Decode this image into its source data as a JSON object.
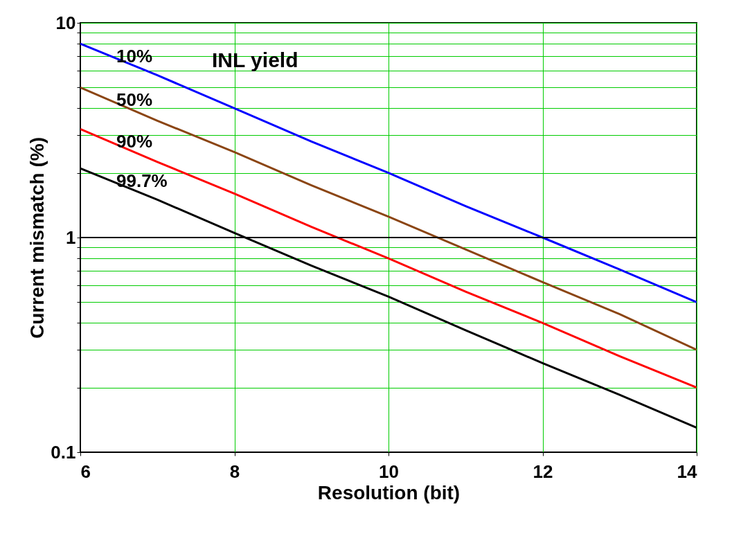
{
  "chart_data": {
    "type": "line",
    "xlabel": "Resolution (bit)",
    "ylabel": "Current mismatch (%)",
    "legend_title": "INL yield",
    "x": [
      6,
      7,
      8,
      9,
      10,
      11,
      12,
      13,
      14
    ],
    "series": [
      {
        "name": "10%",
        "color": "#0000ff",
        "values": [
          8,
          5.7,
          4,
          2.8,
          2,
          1.4,
          1,
          0.71,
          0.5
        ]
      },
      {
        "name": "50%",
        "color": "#8b4513",
        "values": [
          5,
          3.5,
          2.5,
          1.75,
          1.25,
          0.88,
          0.62,
          0.44,
          0.3
        ]
      },
      {
        "name": "90%",
        "color": "#ff0000",
        "values": [
          3.2,
          2.25,
          1.6,
          1.12,
          0.8,
          0.56,
          0.4,
          0.28,
          0.2
        ]
      },
      {
        "name": "99.7%",
        "color": "#000000",
        "values": [
          2.1,
          1.5,
          1.05,
          0.74,
          0.53,
          0.37,
          0.26,
          0.185,
          0.13
        ]
      }
    ],
    "xlim": [
      6,
      14
    ],
    "xticks": [
      6,
      8,
      10,
      12,
      14
    ],
    "ylim": [
      0.1,
      10
    ],
    "yticks": [
      0.1,
      {
        "value": 0.2,
        "label": null
      },
      {
        "value": 0.3,
        "label": null
      },
      {
        "value": 0.4,
        "label": null
      },
      {
        "value": 0.5,
        "label": null
      },
      {
        "value": 0.6,
        "label": null
      },
      {
        "value": 0.7,
        "label": null
      },
      {
        "value": 0.8,
        "label": null
      },
      {
        "value": 0.9,
        "label": null
      },
      1,
      {
        "value": 2,
        "label": null
      },
      {
        "value": 3,
        "label": null
      },
      {
        "value": 4,
        "label": null
      },
      {
        "value": 5,
        "label": null
      },
      {
        "value": 6,
        "label": null
      },
      {
        "value": 7,
        "label": null
      },
      {
        "value": 8,
        "label": null
      },
      {
        "value": 9,
        "label": null
      },
      10
    ],
    "log": true,
    "grid": true,
    "legend": false,
    "ref_lines": [
      {
        "axis": "y",
        "value": 1,
        "color": "#000000"
      }
    ]
  }
}
